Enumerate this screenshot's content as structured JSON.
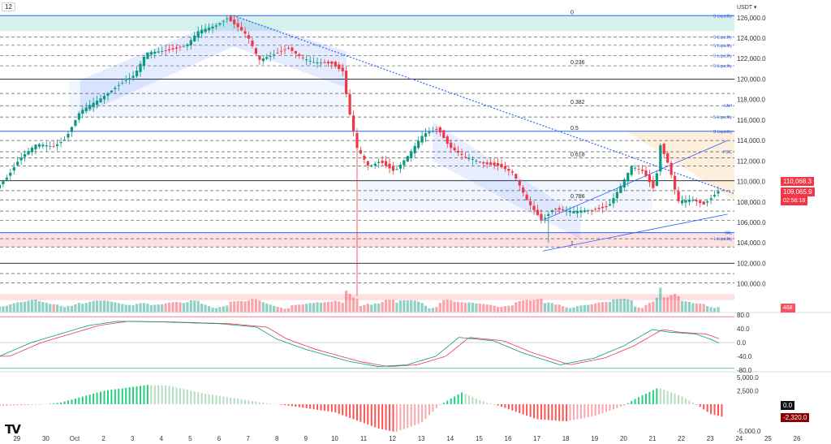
{
  "header": {
    "interval": "12",
    "currency": "USDT ▾"
  },
  "logo": "TV",
  "chart_data": {
    "type": "candlestick",
    "price_axis": {
      "ticks": [
        126000,
        124000,
        122000,
        120000,
        118000,
        116000,
        114000,
        112000,
        110000,
        108000,
        106000,
        104000,
        102000,
        100000
      ],
      "labels": [
        "126,000.0",
        "124,000.0",
        "122,000.0",
        "120,000.0",
        "118,000.0",
        "116,000.0",
        "114,000.0",
        "112,000.0",
        "110,000.0",
        "108,000.0",
        "106,000.0",
        "104,000.0",
        "102,000.0",
        "100,000.0"
      ]
    },
    "x_axis": {
      "labels": [
        "29",
        "30",
        "Oct",
        "2",
        "3",
        "4",
        "5",
        "6",
        "7",
        "8",
        "9",
        "10",
        "11",
        "12",
        "13",
        "14",
        "15",
        "16",
        "17",
        "18",
        "19",
        "20",
        "21",
        "22",
        "23",
        "24",
        "25",
        "26"
      ],
      "days": [
        -2,
        -1,
        0,
        1,
        2,
        3,
        4,
        5,
        6,
        7,
        8,
        9,
        10,
        11,
        12,
        13,
        14,
        15,
        16,
        17,
        18,
        19,
        20,
        21,
        22,
        23,
        24,
        25
      ]
    },
    "price_path": [
      [
        -2.6,
        109300
      ],
      [
        -2.2,
        110500
      ],
      [
        -1.8,
        112200
      ],
      [
        -1.2,
        113600
      ],
      [
        -0.6,
        113400
      ],
      [
        -0.2,
        114200
      ],
      [
        0.3,
        116800
      ],
      [
        1,
        118000
      ],
      [
        1.7,
        119600
      ],
      [
        2.2,
        120400
      ],
      [
        2.6,
        122500
      ],
      [
        3.3,
        122800
      ],
      [
        4,
        123300
      ],
      [
        4.4,
        124600
      ],
      [
        5,
        125200
      ],
      [
        5.4,
        126000
      ],
      [
        5.7,
        125300
      ],
      [
        6.1,
        124200
      ],
      [
        6.5,
        121800
      ],
      [
        7,
        122400
      ],
      [
        7.5,
        123100
      ],
      [
        8,
        122000
      ],
      [
        8.4,
        121600
      ],
      [
        9,
        121600
      ],
      [
        9.4,
        120800
      ],
      [
        9.6,
        117200
      ],
      [
        9.9,
        113200
      ],
      [
        10.3,
        111400
      ],
      [
        10.7,
        112000
      ],
      [
        11.2,
        111000
      ],
      [
        11.7,
        112600
      ],
      [
        12.2,
        114600
      ],
      [
        12.7,
        115200
      ],
      [
        13.1,
        113400
      ],
      [
        13.6,
        112400
      ],
      [
        14.2,
        111800
      ],
      [
        14.8,
        111600
      ],
      [
        15.3,
        110800
      ],
      [
        15.8,
        108000
      ],
      [
        16.3,
        106200
      ],
      [
        16.7,
        107400
      ],
      [
        17.3,
        107000
      ],
      [
        18,
        107200
      ],
      [
        18.6,
        107600
      ],
      [
        19,
        109400
      ],
      [
        19.4,
        111400
      ],
      [
        19.8,
        111000
      ],
      [
        20.2,
        109200
      ],
      [
        20.4,
        113600
      ],
      [
        20.7,
        111500
      ],
      [
        21,
        108000
      ],
      [
        21.5,
        108200
      ],
      [
        21.9,
        107800
      ],
      [
        22.4,
        109066
      ]
    ],
    "wicks": [
      {
        "day": 9.75,
        "low": 98800
      },
      {
        "day": 16.35,
        "low": 104000
      },
      {
        "day": 5.45,
        "high": 126300
      },
      {
        "day": 20.45,
        "high": 113800
      }
    ],
    "levels": [
      {
        "price": 126200,
        "style": "solid-blue",
        "fib": "0",
        "tag": "S Liquidity"
      },
      {
        "price": 124100,
        "style": "dashed",
        "fib": "",
        "tag": "S Liquidity"
      },
      {
        "price": 123300,
        "style": "dashed",
        "fib": "",
        "tag": "S Liquidity"
      },
      {
        "price": 122300,
        "style": "dashed",
        "fib": "",
        "tag": "S Liquidity"
      },
      {
        "price": 121300,
        "style": "dashed",
        "fib": "0.236",
        "tag": "S Liquidity"
      },
      {
        "price": 120000,
        "style": "solid-black",
        "fib": "",
        "tag": ""
      },
      {
        "price": 118600,
        "style": "dashed",
        "fib": "",
        "tag": ""
      },
      {
        "price": 117400,
        "style": "dashed",
        "fib": "0.382",
        "tag": "VAH"
      },
      {
        "price": 116300,
        "style": "dashed",
        "fib": "",
        "tag": "S Liquidity"
      },
      {
        "price": 114900,
        "style": "solid-blue",
        "fib": "0.5",
        "tag": "S Liquidity"
      },
      {
        "price": 114000,
        "style": "dashed",
        "fib": "",
        "tag": ""
      },
      {
        "price": 112900,
        "style": "dashed",
        "fib": "",
        "tag": "POC"
      },
      {
        "price": 112300,
        "style": "dashed",
        "fib": "0.618",
        "tag": ""
      },
      {
        "price": 111500,
        "style": "dashed",
        "fib": "",
        "tag": ""
      },
      {
        "price": 110068,
        "style": "solid-black",
        "fib": "",
        "tag": ""
      },
      {
        "price": 109100,
        "style": "dashed",
        "fib": "",
        "tag": ""
      },
      {
        "price": 108200,
        "style": "dashed",
        "fib": "0.786",
        "tag": ""
      },
      {
        "price": 107100,
        "style": "dashed",
        "fib": "",
        "tag": ""
      },
      {
        "price": 106200,
        "style": "dashed",
        "fib": "",
        "tag": ""
      },
      {
        "price": 105000,
        "style": "solid-blue",
        "fib": "",
        "tag": "VAL"
      },
      {
        "price": 104400,
        "style": "dashed",
        "fib": "",
        "tag": "L Liquidity"
      },
      {
        "price": 103600,
        "style": "dashed",
        "fib": "1",
        "tag": ""
      },
      {
        "price": 102000,
        "style": "solid-black",
        "fib": "",
        "tag": ""
      },
      {
        "price": 101000,
        "style": "dashed",
        "fib": "",
        "tag": ""
      },
      {
        "price": 100100,
        "style": "dashed",
        "fib": "",
        "tag": ""
      }
    ],
    "price_badges": {
      "level": "110,068.3",
      "last": "109,065.9",
      "countdown": "02:56:18",
      "volume": "468"
    },
    "oscillator": {
      "ticks": [
        80,
        40,
        0,
        -40,
        -80
      ],
      "labels": [
        "80.0",
        "40.0",
        "0.0",
        "-40.0",
        "-80.0"
      ],
      "k": [
        [
          -2.6,
          -40
        ],
        [
          -1.5,
          0
        ],
        [
          0.5,
          50
        ],
        [
          1.5,
          62
        ],
        [
          3,
          60
        ],
        [
          5,
          55
        ],
        [
          6.3,
          45
        ],
        [
          7,
          10
        ],
        [
          8,
          -20
        ],
        [
          9.5,
          -55
        ],
        [
          10.5,
          -70
        ],
        [
          11.5,
          -65
        ],
        [
          12.5,
          -40
        ],
        [
          13.3,
          15
        ],
        [
          14.5,
          5
        ],
        [
          15.5,
          -30
        ],
        [
          16.8,
          -65
        ],
        [
          18,
          -45
        ],
        [
          19,
          -10
        ],
        [
          20,
          38
        ],
        [
          20.6,
          30
        ],
        [
          21.5,
          25
        ],
        [
          22,
          10
        ],
        [
          22.4,
          -5
        ]
      ]
    },
    "macd": {
      "ticks": [
        5000,
        2500,
        0,
        -5000
      ],
      "labels": [
        "5,000.0",
        "2,500.0",
        "",
        "-5,000.0"
      ],
      "zero_label": "0.0",
      "value_label": "-2,320.0",
      "hist": [
        [
          -2.6,
          -300
        ],
        [
          -1.2,
          -100
        ],
        [
          -0.5,
          300
        ],
        [
          1,
          2500
        ],
        [
          2.5,
          3600
        ],
        [
          3.2,
          3500
        ],
        [
          4.5,
          2000
        ],
        [
          6.5,
          300
        ],
        [
          7.3,
          -200
        ],
        [
          9,
          -1500
        ],
        [
          10.5,
          -4500
        ],
        [
          11.1,
          -5200
        ],
        [
          12,
          -3500
        ],
        [
          12.6,
          -300
        ],
        [
          13,
          1000
        ],
        [
          13.4,
          2200
        ],
        [
          14,
          800
        ],
        [
          14.8,
          -500
        ],
        [
          16,
          -2800
        ],
        [
          17,
          -3200
        ],
        [
          18,
          -2200
        ],
        [
          19,
          -300
        ],
        [
          19.4,
          1000
        ],
        [
          20.2,
          3100
        ],
        [
          21,
          1500
        ],
        [
          21.6,
          -300
        ],
        [
          22,
          -1800
        ],
        [
          22.4,
          -2320
        ]
      ]
    },
    "colors": {
      "up": "#089981",
      "down": "#f23645",
      "channel": "#2962ff"
    }
  }
}
